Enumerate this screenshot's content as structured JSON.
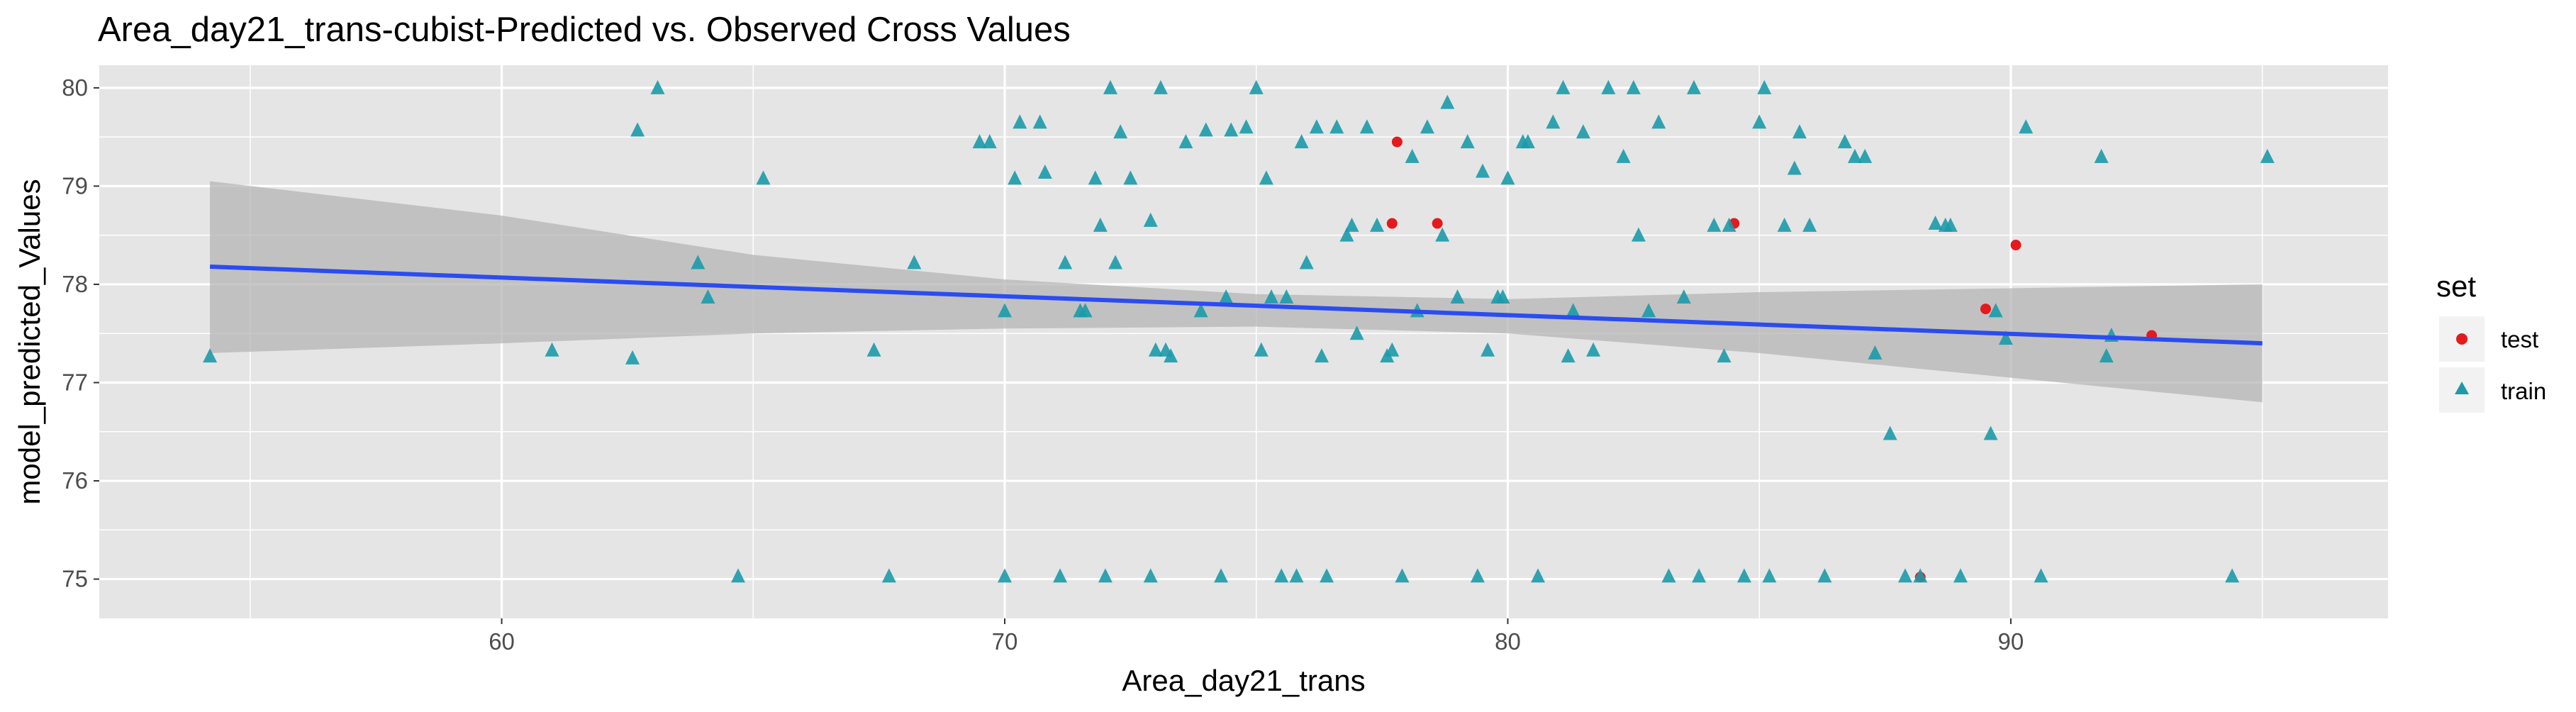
{
  "chart_data": {
    "type": "scatter",
    "title": "Area_day21_trans-cubist-Predicted vs. Observed Cross Values",
    "xlabel": "Area_day21_trans",
    "ylabel": "model_predicted_Values",
    "xlim": [
      52.0,
      97.5
    ],
    "ylim": [
      74.6,
      80.23
    ],
    "x_ticks": [
      60,
      70,
      80,
      90
    ],
    "y_ticks": [
      75,
      76,
      77,
      78,
      79,
      80
    ],
    "grid": true,
    "legend": {
      "title": "set",
      "position": "right",
      "entries": [
        "test",
        "train"
      ]
    },
    "colors": {
      "test": "#e41a1c",
      "train": "#1b9aaa",
      "fit_line": "#2b4cf2",
      "ribbon": "#b3b3b3",
      "panel": "#e5e5e5",
      "grid": "#ffffff"
    },
    "fit_line": {
      "x": [
        54.2,
        95.0
      ],
      "y": [
        78.18,
        77.4
      ]
    },
    "confidence_band": {
      "x": [
        54.2,
        60,
        65,
        70,
        75,
        80,
        85,
        90,
        95.0
      ],
      "upper": [
        79.05,
        78.7,
        78.3,
        78.05,
        77.9,
        77.85,
        77.92,
        77.96,
        78.0
      ],
      "lower": [
        77.3,
        77.4,
        77.5,
        77.55,
        77.57,
        77.5,
        77.3,
        77.05,
        76.8
      ]
    },
    "series": [
      {
        "name": "test",
        "marker": "circle",
        "x": [
          77.7,
          77.8,
          78.6,
          84.5,
          89.5,
          90.1,
          92.8,
          88.2
        ],
        "y": [
          78.62,
          79.45,
          78.62,
          78.62,
          77.75,
          78.4,
          77.48,
          75.02
        ]
      },
      {
        "name": "train",
        "marker": "triangle",
        "x": [
          54.2,
          61.0,
          62.6,
          62.7,
          63.1,
          63.9,
          64.1,
          64.7,
          65.2,
          67.4,
          67.7,
          68.2,
          69.5,
          69.7,
          70.0,
          70.0,
          70.2,
          70.3,
          70.7,
          70.8,
          71.1,
          71.2,
          71.5,
          71.8,
          71.9,
          72.0,
          72.1,
          72.2,
          72.3,
          72.5,
          72.9,
          72.9,
          73.0,
          73.1,
          73.3,
          73.6,
          73.9,
          74.0,
          74.3,
          74.4,
          74.5,
          74.8,
          75.0,
          75.2,
          75.5,
          75.6,
          75.8,
          75.9,
          76.0,
          76.2,
          76.4,
          76.6,
          76.8,
          77.0,
          77.2,
          77.4,
          77.6,
          77.9,
          78.1,
          78.4,
          78.7,
          79.0,
          79.2,
          79.4,
          79.6,
          79.8,
          80.0,
          80.3,
          80.6,
          80.9,
          81.2,
          81.5,
          81.7,
          82.0,
          82.3,
          82.6,
          82.8,
          83.0,
          83.2,
          83.5,
          83.8,
          84.1,
          84.3,
          84.7,
          85.0,
          85.2,
          85.5,
          85.8,
          86.0,
          86.3,
          86.7,
          87.1,
          87.3,
          87.6,
          87.9,
          88.2,
          88.5,
          88.8,
          89.0,
          89.6,
          89.7,
          90.3,
          90.6,
          91.8,
          91.9,
          92.0,
          94.4,
          95.1,
          75.3,
          76.3,
          77.7,
          78.8,
          79.9,
          81.1,
          82.5,
          83.7,
          85.1,
          86.9,
          88.7,
          89.9,
          73.2,
          71.6,
          76.9,
          80.4,
          81.3,
          75.1,
          78.2,
          79.5,
          84.4,
          85.7
        ],
        "y": [
          77.27,
          77.33,
          77.25,
          79.57,
          80.0,
          78.22,
          77.87,
          75.03,
          79.08,
          77.33,
          75.03,
          78.22,
          79.45,
          79.45,
          75.03,
          77.73,
          79.08,
          79.65,
          79.65,
          79.14,
          75.03,
          78.22,
          77.73,
          79.08,
          78.6,
          75.03,
          80.0,
          78.22,
          79.55,
          79.08,
          75.03,
          78.65,
          77.33,
          80.0,
          77.27,
          79.45,
          77.73,
          79.57,
          75.03,
          77.87,
          79.57,
          79.6,
          80.0,
          79.08,
          75.03,
          77.87,
          75.03,
          79.45,
          78.22,
          79.6,
          75.03,
          79.6,
          78.5,
          77.5,
          79.6,
          78.6,
          77.27,
          75.03,
          79.3,
          79.6,
          78.5,
          77.87,
          79.45,
          75.03,
          77.33,
          77.87,
          79.08,
          79.45,
          75.03,
          79.65,
          77.27,
          79.55,
          77.33,
          80.0,
          79.3,
          78.5,
          77.73,
          79.65,
          75.03,
          77.87,
          75.03,
          78.6,
          77.27,
          75.03,
          79.65,
          75.03,
          78.6,
          79.55,
          78.6,
          75.03,
          79.45,
          79.3,
          77.3,
          76.48,
          75.03,
          75.03,
          78.62,
          78.6,
          75.03,
          76.48,
          77.73,
          79.6,
          75.03,
          79.3,
          77.27,
          77.48,
          75.03,
          79.3,
          77.87,
          77.27,
          77.33,
          79.85,
          77.87,
          80.0,
          80.0,
          80.0,
          80.0,
          79.3,
          78.6,
          77.45,
          77.33,
          77.73,
          78.6,
          79.45,
          77.73,
          77.33,
          77.73,
          79.15,
          78.6,
          79.18
        ]
      }
    ]
  }
}
